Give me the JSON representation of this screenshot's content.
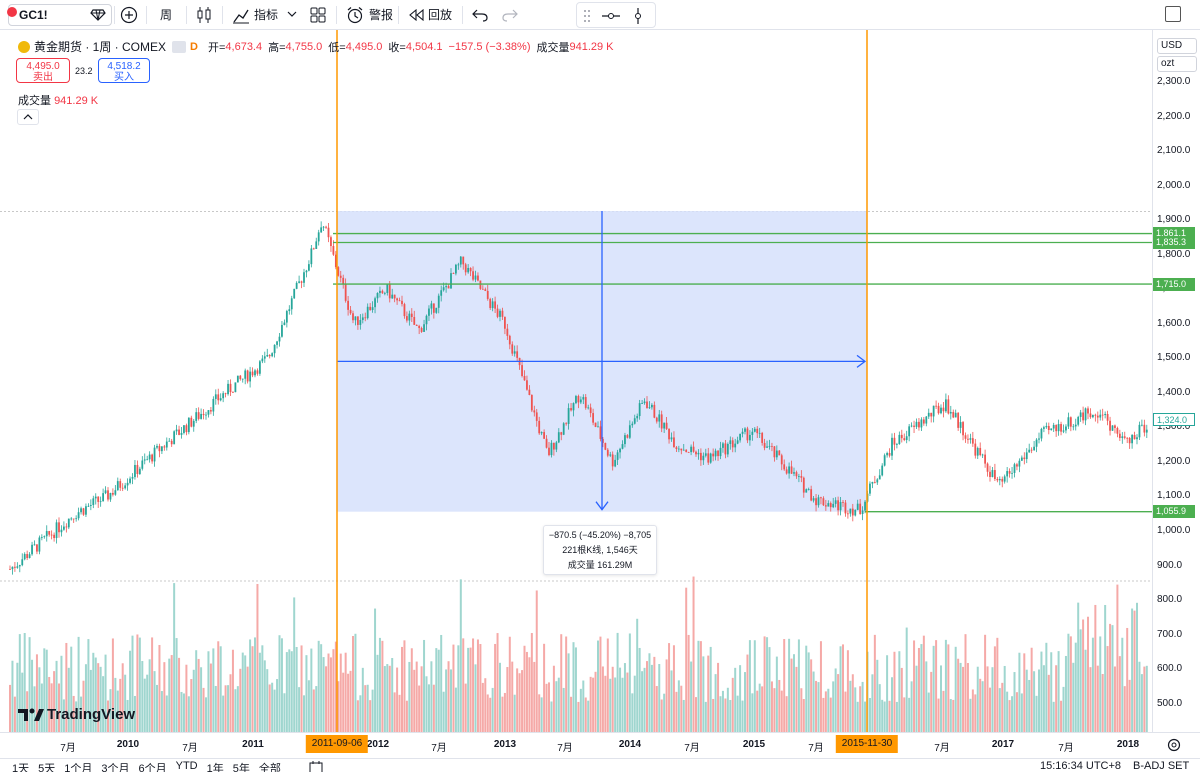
{
  "toolbar": {
    "symbol": "GC1!",
    "interval": "周",
    "indicators": "指标",
    "alert": "警报",
    "replay": "回放"
  },
  "legend": {
    "title": "黄金期货 · 1周 · COMEX",
    "d_letter": "D",
    "open_label": "开=",
    "open": "4,673.4",
    "high_label": "高=",
    "high": "4,755.0",
    "low_label": "低=",
    "low": "4,495.0",
    "close_label": "收=",
    "close": "4,504.1",
    "change": "−157.5 (−3.38%)",
    "volume_label": "成交量",
    "volume": "941.29 K"
  },
  "trade": {
    "sell_price": "4,495.0",
    "sell_label": "卖出",
    "spread": "23.2",
    "buy_price": "4,518.2",
    "buy_label": "买入"
  },
  "volume_pane": {
    "label": "成交量",
    "value": "941.29 K"
  },
  "measure": {
    "line1": "−870.5 (−45.20%) −8,705",
    "line2": "221根K线, 1,546天",
    "line3": "成交量 161.29M"
  },
  "price_axis": {
    "currency": "USD",
    "unit": "ozt",
    "ticks": [
      "2,300.0",
      "2,200.0",
      "2,100.0",
      "2,000.0",
      "1,900.0",
      "1,800.0",
      "1,700.0",
      "1,600.0",
      "1,500.0",
      "1,400.0",
      "1,300.0",
      "1,200.0",
      "1,100.0",
      "1,000.0",
      "900.0",
      "800.0",
      "700.0",
      "600.0",
      "500.0"
    ],
    "levels": [
      {
        "price": 1861.1,
        "label": "1,861.1"
      },
      {
        "price": 1835.3,
        "label": "1,835.3"
      },
      {
        "price": 1715.0,
        "label": "1,715.0"
      },
      {
        "price": 1055.9,
        "label": "1,055.9"
      }
    ],
    "current": {
      "price": 1324.0,
      "label": "1,324.0"
    }
  },
  "time_axis": {
    "labels": [
      "7月",
      "2010",
      "7月",
      "2011",
      "2012",
      "7月",
      "2013",
      "7月",
      "2014",
      "7月",
      "2015",
      "7月",
      "7月",
      "2017",
      "7月",
      "2018"
    ],
    "highlight_start": "2011-09-06",
    "highlight_end": "2015-11-30"
  },
  "bottom_bar": {
    "ranges": [
      "1天",
      "5天",
      "1个月",
      "3个月",
      "6个月",
      "YTD",
      "1年",
      "5年",
      "全部"
    ],
    "time": "15:16:34 UTC+8",
    "extra": "B-ADJ SET"
  },
  "branding": "TradingView",
  "colors": {
    "up": "#26a69a",
    "down": "#ef5350",
    "measure_fill": "#d6e0fb",
    "measure_line": "#2962ff",
    "vertical_line": "#ff9800",
    "level_line": "#4caf50"
  },
  "chart_data": {
    "type": "candlestick",
    "price_scale": {
      "min": 500,
      "max": 2300
    },
    "period": "1周",
    "range_measure": {
      "from_price": 1926.4,
      "to_price": 1055.9,
      "start_date": "2011-09-06",
      "end_date": "2015-11-30"
    },
    "price_path": [
      [
        "2009-04",
        890
      ],
      [
        "2009-10",
        1050
      ],
      [
        "2010-01",
        1100
      ],
      [
        "2010-06",
        1240
      ],
      [
        "2010-12",
        1400
      ],
      [
        "2011-04",
        1500
      ],
      [
        "2011-08",
        1800
      ],
      [
        "2011-09",
        1900
      ],
      [
        "2011-12",
        1600
      ],
      [
        "2012-03",
        1700
      ],
      [
        "2012-06",
        1580
      ],
      [
        "2012-10",
        1780
      ],
      [
        "2013-02",
        1600
      ],
      [
        "2013-06",
        1220
      ],
      [
        "2013-09",
        1400
      ],
      [
        "2013-12",
        1200
      ],
      [
        "2014-03",
        1380
      ],
      [
        "2014-06",
        1250
      ],
      [
        "2014-09",
        1210
      ],
      [
        "2015-01",
        1290
      ],
      [
        "2015-07",
        1090
      ],
      [
        "2015-11",
        1060
      ],
      [
        "2016-02",
        1250
      ],
      [
        "2016-07",
        1370
      ],
      [
        "2016-12",
        1130
      ],
      [
        "2017-04",
        1280
      ],
      [
        "2017-09",
        1350
      ],
      [
        "2017-12",
        1250
      ],
      [
        "2018-02",
        1324
      ]
    ]
  }
}
